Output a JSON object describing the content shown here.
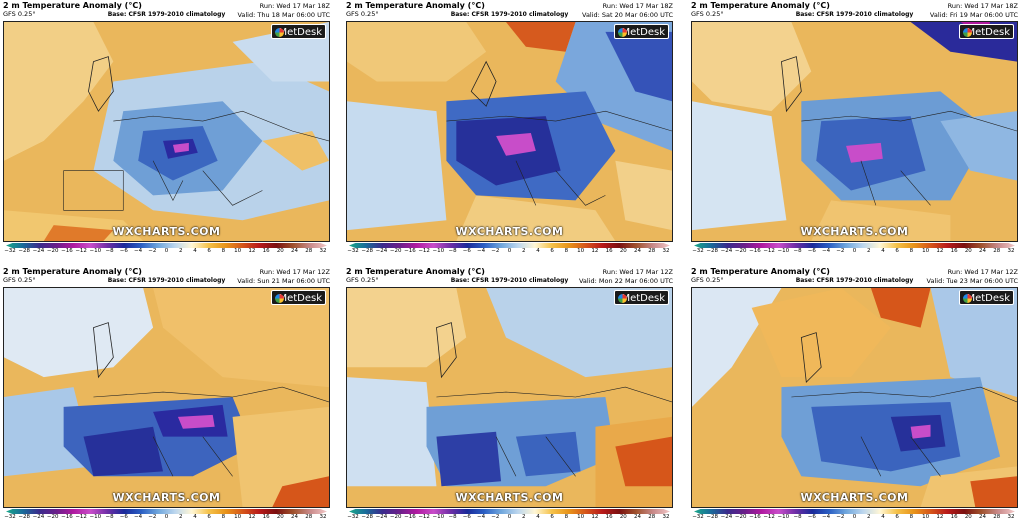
{
  "colorbar_ticks": [
    "−32",
    "−28",
    "−24",
    "−20",
    "−16",
    "−12",
    "−10",
    "−8",
    "−6",
    "−4",
    "−2",
    "0",
    "2",
    "4",
    "6",
    "8",
    "10",
    "12",
    "16",
    "20",
    "24",
    "28",
    "32"
  ],
  "panels": [
    {
      "title": "2 m Temperature Anomaly (°C)",
      "model": "GFS 0.25°",
      "base": "Base: CFSR 1979-2010 climatology",
      "run": "Run: Wed 17 Mar 18Z",
      "valid": "Valid: Thu 18 Mar 06:00 UTC",
      "logo": "MetDesk",
      "watermark": "WXCHARTS.COM"
    },
    {
      "title": "2 m Temperature Anomaly (°C)",
      "model": "GFS 0.25°",
      "base": "Base: CFSR 1979-2010 climatology",
      "run": "Run: Wed 17 Mar 18Z",
      "valid": "Valid: Sat 20 Mar 06:00 UTC",
      "logo": "MetDesk",
      "watermark": "WXCHARTS.COM"
    },
    {
      "title": "2 m Temperature Anomaly (°C)",
      "model": "GFS 0.25°",
      "base": "Base: CFSR 1979-2010 climatology",
      "run": "Run: Wed 17 Mar 18Z",
      "valid": "Valid: Fri 19 Mar 06:00 UTC",
      "logo": "MetDesk",
      "watermark": "WXCHARTS.COM"
    },
    {
      "title": "2 m Temperature Anomaly (°C)",
      "model": "GFS 0.25°",
      "base": "Base: CFSR 1979-2010 climatology",
      "run": "Run: Wed 17 Mar 12Z",
      "valid": "Valid: Sun 21 Mar 06:00 UTC",
      "logo": "MetDesk",
      "watermark": "WXCHARTS.COM"
    },
    {
      "title": "2 m Temperature Anomaly (°C)",
      "model": "GFS 0.25°",
      "base": "Base: CFSR 1979-2010 climatology",
      "run": "Run: Wed 17 Mar 12Z",
      "valid": "Valid: Mon 22 Mar 06:00 UTC",
      "logo": "MetDesk",
      "watermark": "WXCHARTS.COM"
    },
    {
      "title": "2 m Temperature Anomaly (°C)",
      "model": "GFS 0.25°",
      "base": "Base: CFSR 1979-2010 climatology",
      "run": "Run: Wed 17 Mar 12Z",
      "valid": "Valid: Tue 23 Mar 06:00 UTC",
      "logo": "MetDesk",
      "watermark": "WXCHARTS.COM"
    }
  ]
}
